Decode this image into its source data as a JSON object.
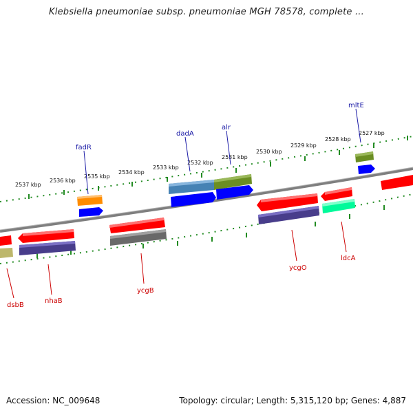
{
  "header": {
    "title": "Klebsiella pneumoniae subsp. pneumoniae MGH 78578, complete ..."
  },
  "footer": {
    "accession": "Accession: NC_009648",
    "summary": "Topology: circular; Length: 5,315,120 bp; Genes: 4,887"
  },
  "ruler": {
    "labels": [
      "2537 kbp",
      "2536 kbp",
      "2535 kbp",
      "2534 kbp",
      "2533 kbp",
      "2532 kbp",
      "2531 kbp",
      "2530 kbp",
      "2529 kbp",
      "2528 kbp",
      "2527 kbp"
    ]
  },
  "genes_top": [
    {
      "name": "fadR",
      "color": "#ff8c00"
    },
    {
      "name": "dadA",
      "color": "#4682b4"
    },
    {
      "name": "alr",
      "color": "#6b8e23"
    },
    {
      "name": "mltE",
      "color": "#6b8e23"
    }
  ],
  "genes_bottom": [
    {
      "name": "dsbB",
      "color": "#bdb76b"
    },
    {
      "name": "nhaB",
      "color": "#483d8b"
    },
    {
      "name": "ycgB",
      "color": "#696969"
    },
    {
      "name": "ycgO",
      "color": "#483d8b"
    },
    {
      "name": "ldcA",
      "color": "#00fa9a"
    }
  ],
  "colors": {
    "cds": "#ff0000",
    "orf": "#0000ff",
    "backbone": "#7f7f7f",
    "tick": "#228b22",
    "label_top": "#1a1aa6",
    "label_bottom": "#cc0000"
  }
}
